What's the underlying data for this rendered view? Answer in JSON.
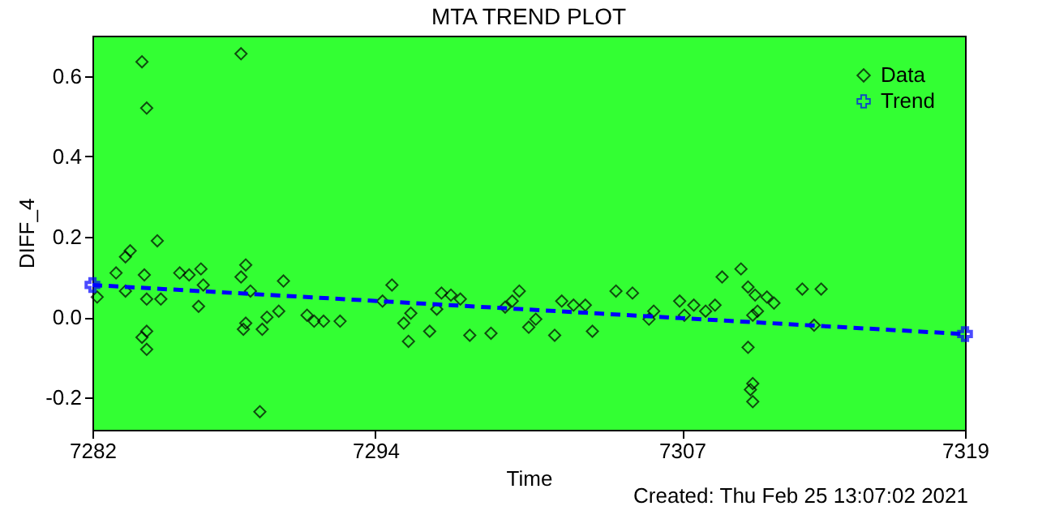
{
  "chart_data": {
    "type": "scatter",
    "title": "MTA TREND PLOT",
    "xlabel": "Time",
    "ylabel": "DIFF_4",
    "xlim": [
      7282,
      7319
    ],
    "xticks": [
      7282,
      7294,
      7307,
      7319
    ],
    "ylim": [
      -0.28,
      0.7
    ],
    "yticks": [
      {
        "value": -0.2,
        "label": "-0.2"
      },
      {
        "value": 0.0,
        "label": "0.0"
      },
      {
        "value": 0.2,
        "label": "0.2"
      },
      {
        "value": 0.4,
        "label": "0.4"
      },
      {
        "value": 0.6,
        "label": "0.6"
      }
    ],
    "grid": false,
    "legend": "top right",
    "series": [
      {
        "name": "Data",
        "color": "#000000",
        "marker": "diamond",
        "x": [
          7282.2,
          7284.1,
          7284.3,
          7284.75,
          7283.0,
          7283.4,
          7283.6,
          7283.4,
          7284.2,
          7284.1,
          7284.3,
          7284.3,
          7284.3,
          7284.9,
          7285.7,
          7286.1,
          7286.6,
          7286.7,
          7286.5,
          7288.3,
          7288.5,
          7288.3,
          7288.4,
          7288.5,
          7288.7,
          7289.2,
          7289.4,
          7289.9,
          7289.1,
          7290.1,
          7291.1,
          7291.4,
          7291.8,
          7292.5,
          7294.3,
          7294.7,
          7295.2,
          7295.5,
          7295.4,
          7296.3,
          7296.6,
          7296.8,
          7297.2,
          7297.6,
          7298.0,
          7298.9,
          7299.5,
          7299.8,
          7300.1,
          7300.5,
          7300.8,
          7301.6,
          7301.9,
          7302.4,
          7302.9,
          7303.2,
          7304.2,
          7304.9,
          7305.6,
          7305.8,
          7306.9,
          7307.1,
          7307.5,
          7308.0,
          7308.4,
          7308.7,
          7309.5,
          7309.8,
          7310.1,
          7310.0,
          7310.2,
          7309.8,
          7310.0,
          7309.9,
          7310.0,
          7310.6,
          7310.9,
          7312.1,
          7312.6,
          7312.9
        ],
        "values": [
          0.05,
          0.635,
          0.52,
          0.19,
          0.11,
          0.15,
          0.165,
          0.065,
          0.105,
          -0.05,
          -0.035,
          -0.08,
          0.045,
          0.045,
          0.11,
          0.105,
          0.12,
          0.08,
          0.027,
          0.655,
          0.13,
          0.1,
          -0.03,
          -0.015,
          0.065,
          -0.03,
          0.0,
          0.015,
          -0.235,
          0.09,
          0.005,
          -0.01,
          -0.01,
          -0.01,
          0.04,
          0.08,
          -0.015,
          0.01,
          -0.06,
          -0.035,
          0.02,
          0.06,
          0.055,
          0.045,
          -0.045,
          -0.04,
          0.025,
          0.04,
          0.065,
          -0.025,
          -0.005,
          -0.045,
          0.04,
          0.03,
          0.03,
          -0.035,
          0.065,
          0.06,
          -0.005,
          0.015,
          0.04,
          0.005,
          0.03,
          0.015,
          0.03,
          0.1,
          0.12,
          0.075,
          0.055,
          0.005,
          0.015,
          -0.075,
          -0.165,
          -0.18,
          -0.21,
          0.05,
          0.035,
          0.07,
          -0.02,
          0.07
        ]
      },
      {
        "name": "Trend",
        "type": "line",
        "color": "#0000ff",
        "marker": "cross",
        "line_style": "dashed",
        "x": [
          7282,
          7319
        ],
        "values": [
          0.08,
          -0.042
        ]
      }
    ],
    "annotations": [
      "Created: Thu Feb 25 13:07:02 2021"
    ]
  }
}
